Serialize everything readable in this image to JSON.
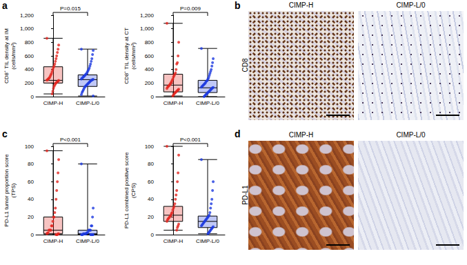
{
  "panel_labels": [
    "a",
    "b",
    "c",
    "d"
  ],
  "images": [
    {
      "stain": "CD8",
      "columns": [
        "CIMP-H",
        "CIMP-L/0"
      ]
    },
    {
      "stain": "PD-L1",
      "columns": [
        "CIMP-H",
        "CIMP-L/0"
      ]
    }
  ],
  "chart_data": [
    {
      "type": "boxplot",
      "y_label": "CD8⁺ TIL density at IM\n(cells/mm²)",
      "annotation": "P=0.015",
      "categories": [
        "CIMP-H",
        "CIMP-L/0"
      ],
      "ylim": [
        0,
        1200
      ],
      "yticks": [
        0,
        200,
        400,
        600,
        800,
        1000,
        1200
      ],
      "grid": false,
      "series": [
        {
          "color": "#e3261f",
          "box": {
            "min": 40,
            "q1": 200,
            "median": 240,
            "q3": 440,
            "max": 860
          },
          "points": [
            860,
            760,
            700,
            650,
            600,
            560,
            520,
            480,
            450,
            430,
            400,
            370,
            340,
            320,
            300,
            280,
            270,
            260,
            250,
            245,
            240,
            230,
            220,
            210,
            200,
            190,
            170,
            150,
            120,
            80,
            40
          ]
        },
        {
          "color": "#1e3be0",
          "box": {
            "min": 10,
            "q1": 150,
            "median": 250,
            "q3": 320,
            "max": 700
          },
          "points": [
            700,
            680,
            620,
            560,
            520,
            480,
            450,
            420,
            400,
            380,
            360,
            340,
            330,
            320,
            310,
            300,
            290,
            280,
            270,
            260,
            255,
            250,
            245,
            240,
            230,
            220,
            210,
            200,
            190,
            180,
            170,
            160,
            150,
            140,
            120,
            100,
            80,
            60,
            30,
            10
          ]
        }
      ]
    },
    {
      "type": "boxplot",
      "y_label": "CD8⁺ TIL density at CT\n(cells/mm²)",
      "annotation": "P=0.009",
      "categories": [
        "CIMP-H",
        "CIMP-L/0"
      ],
      "ylim": [
        0,
        1200
      ],
      "yticks": [
        0,
        200,
        400,
        600,
        800,
        1000,
        1200
      ],
      "grid": false,
      "series": [
        {
          "color": "#e3261f",
          "box": {
            "min": 10,
            "q1": 70,
            "median": 170,
            "q3": 330,
            "max": 1080
          },
          "points": [
            1080,
            800,
            600,
            500,
            480,
            400,
            350,
            330,
            310,
            290,
            260,
            240,
            220,
            200,
            185,
            170,
            160,
            150,
            140,
            120,
            110,
            100,
            90,
            80,
            70,
            60,
            50,
            40,
            20,
            10
          ]
        },
        {
          "color": "#1e3be0",
          "box": {
            "min": 0,
            "q1": 60,
            "median": 130,
            "q3": 240,
            "max": 710
          },
          "points": [
            710,
            560,
            500,
            450,
            400,
            370,
            340,
            310,
            280,
            260,
            240,
            230,
            220,
            200,
            190,
            180,
            170,
            160,
            150,
            140,
            135,
            130,
            120,
            110,
            100,
            90,
            80,
            70,
            60,
            50,
            40,
            30,
            20,
            10,
            0
          ]
        }
      ]
    },
    {
      "type": "boxplot",
      "y_label": "PD-L1 tumor proportion score\n(TPS)",
      "annotation": "P<0.001",
      "categories": [
        "CIMP-H",
        "CIMP-L/0"
      ],
      "ylim": [
        0,
        100
      ],
      "yticks": [
        0,
        20,
        40,
        60,
        80,
        100
      ],
      "grid": false,
      "series": [
        {
          "color": "#e3261f",
          "box": {
            "min": 0,
            "q1": 1,
            "median": 5,
            "q3": 20,
            "max": 95
          },
          "points": [
            95,
            85,
            70,
            60,
            50,
            40,
            30,
            25,
            20,
            20,
            15,
            10,
            10,
            5,
            5,
            5,
            5,
            2,
            2,
            1,
            1,
            1,
            0,
            0,
            0
          ]
        },
        {
          "color": "#1e3be0",
          "box": {
            "min": 0,
            "q1": 0,
            "median": 1,
            "q3": 5,
            "max": 80
          },
          "points": [
            80,
            30,
            20,
            10,
            10,
            5,
            5,
            5,
            5,
            3,
            2,
            2,
            1,
            1,
            1,
            1,
            1,
            0,
            0,
            0,
            0,
            0,
            0,
            0,
            0
          ]
        }
      ]
    },
    {
      "type": "boxplot",
      "y_label": "PD-L1 combined positive score\n(CPS)",
      "annotation": "P<0.001",
      "categories": [
        "CIMP-H",
        "CIMP-L/0"
      ],
      "ylim": [
        0,
        100
      ],
      "yticks": [
        0,
        20,
        40,
        60,
        80,
        100
      ],
      "grid": false,
      "series": [
        {
          "color": "#e3261f",
          "box": {
            "min": 5,
            "q1": 15,
            "median": 22,
            "q3": 32,
            "max": 100
          },
          "points": [
            100,
            90,
            70,
            60,
            50,
            45,
            40,
            35,
            32,
            30,
            28,
            25,
            24,
            22,
            21,
            20,
            19,
            18,
            17,
            15,
            12,
            10,
            8,
            5
          ]
        },
        {
          "color": "#1e3be0",
          "box": {
            "min": 1,
            "q1": 8,
            "median": 15,
            "q3": 21,
            "max": 85
          },
          "points": [
            85,
            60,
            50,
            40,
            35,
            30,
            25,
            22,
            21,
            20,
            19,
            18,
            17,
            16,
            15,
            14,
            13,
            12,
            11,
            10,
            9,
            8,
            7,
            6,
            5,
            4,
            3,
            2,
            1
          ]
        }
      ]
    }
  ]
}
